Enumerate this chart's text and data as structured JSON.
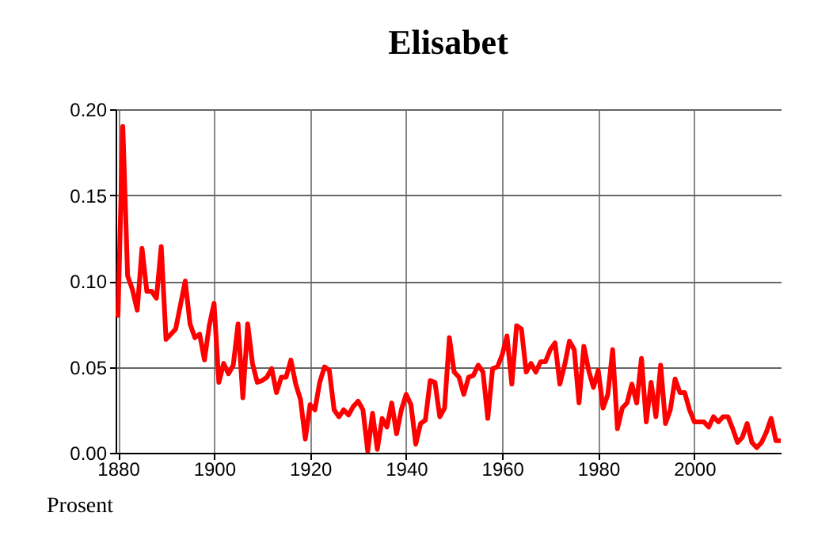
{
  "chart_data": {
    "type": "line",
    "title": "Elisabet",
    "ylabel": "Prosent",
    "x": [
      1880,
      1881,
      1882,
      1883,
      1884,
      1885,
      1886,
      1887,
      1888,
      1889,
      1890,
      1891,
      1892,
      1893,
      1894,
      1895,
      1896,
      1897,
      1898,
      1899,
      1900,
      1901,
      1902,
      1903,
      1904,
      1905,
      1906,
      1907,
      1908,
      1909,
      1910,
      1911,
      1912,
      1913,
      1914,
      1915,
      1916,
      1917,
      1918,
      1919,
      1920,
      1921,
      1922,
      1923,
      1924,
      1925,
      1926,
      1927,
      1928,
      1929,
      1930,
      1931,
      1932,
      1933,
      1934,
      1935,
      1936,
      1937,
      1938,
      1939,
      1940,
      1941,
      1942,
      1943,
      1944,
      1945,
      1946,
      1947,
      1948,
      1949,
      1950,
      1951,
      1952,
      1953,
      1954,
      1955,
      1956,
      1957,
      1958,
      1959,
      1960,
      1961,
      1962,
      1963,
      1964,
      1965,
      1966,
      1967,
      1968,
      1969,
      1970,
      1971,
      1972,
      1973,
      1974,
      1975,
      1976,
      1977,
      1978,
      1979,
      1980,
      1981,
      1982,
      1983,
      1984,
      1985,
      1986,
      1987,
      1988,
      1989,
      1990,
      1991,
      1992,
      1993,
      1994,
      1995,
      1996,
      1997,
      1998,
      1999,
      2000,
      2001,
      2002,
      2003,
      2004,
      2005,
      2006,
      2007,
      2008,
      2009,
      2010,
      2011,
      2012,
      2013,
      2014,
      2015,
      2016,
      2017,
      2018
    ],
    "series": [
      {
        "color": "#ff0000",
        "values": [
          0.08,
          0.19,
          0.103,
          0.095,
          0.083,
          0.119,
          0.094,
          0.094,
          0.09,
          0.12,
          0.066,
          0.069,
          0.072,
          0.086,
          0.1,
          0.075,
          0.067,
          0.069,
          0.054,
          0.074,
          0.087,
          0.041,
          0.052,
          0.046,
          0.051,
          0.075,
          0.032,
          0.075,
          0.052,
          0.041,
          0.042,
          0.044,
          0.049,
          0.035,
          0.044,
          0.044,
          0.054,
          0.04,
          0.031,
          0.008,
          0.028,
          0.025,
          0.041,
          0.05,
          0.048,
          0.025,
          0.021,
          0.025,
          0.022,
          0.027,
          0.03,
          0.025,
          0.001,
          0.023,
          0.002,
          0.02,
          0.015,
          0.029,
          0.011,
          0.025,
          0.034,
          0.028,
          0.005,
          0.017,
          0.019,
          0.042,
          0.041,
          0.021,
          0.026,
          0.067,
          0.047,
          0.044,
          0.034,
          0.044,
          0.045,
          0.051,
          0.047,
          0.02,
          0.049,
          0.05,
          0.057,
          0.068,
          0.04,
          0.074,
          0.072,
          0.047,
          0.052,
          0.047,
          0.053,
          0.053,
          0.06,
          0.064,
          0.04,
          0.051,
          0.065,
          0.06,
          0.029,
          0.062,
          0.048,
          0.038,
          0.048,
          0.026,
          0.034,
          0.06,
          0.014,
          0.026,
          0.029,
          0.04,
          0.029,
          0.055,
          0.018,
          0.041,
          0.021,
          0.051,
          0.017,
          0.025,
          0.043,
          0.035,
          0.035,
          0.025,
          0.018,
          0.018,
          0.018,
          0.015,
          0.021,
          0.018,
          0.021,
          0.021,
          0.014,
          0.006,
          0.009,
          0.017,
          0.006,
          0.003,
          0.006,
          0.012,
          0.02,
          0.007,
          0.007
        ]
      }
    ],
    "xlim": [
      1879.5,
      2018
    ],
    "xticks": [
      1880,
      1900,
      1920,
      1940,
      1960,
      1980,
      2000
    ],
    "ylim": [
      0,
      0.2
    ],
    "yticks": [
      {
        "value": 0,
        "label": "0.00"
      },
      {
        "value": 0.05,
        "label": "0.05"
      },
      {
        "value": 0.1,
        "label": "0.10"
      },
      {
        "value": 0.15,
        "label": "0.15"
      },
      {
        "value": 0.2,
        "label": "0.20"
      }
    ],
    "grid": true,
    "marker": "none",
    "line_style": "solid"
  }
}
